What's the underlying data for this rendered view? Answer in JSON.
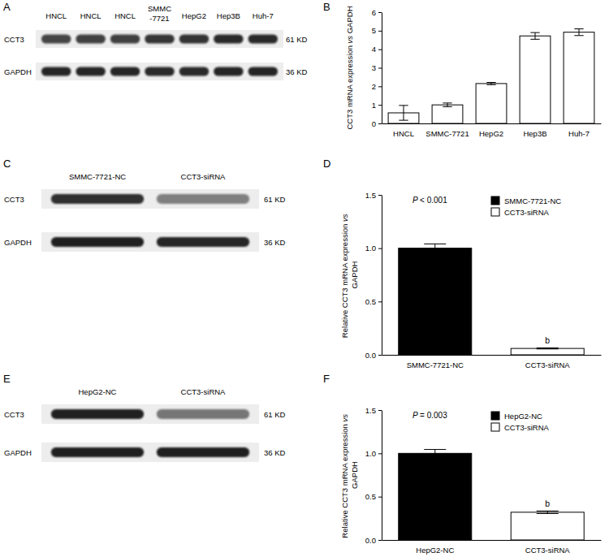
{
  "chart_data": [
    {
      "panel": "A",
      "type": "blot",
      "lanes": [
        "HNCL",
        "HNCL",
        "HNCL",
        "SMMC-7721",
        "HepG2",
        "Hep3B",
        "Huh-7"
      ],
      "rows": [
        {
          "name": "CCT3",
          "size": "61 KD",
          "intensity": [
            0.78,
            0.8,
            0.8,
            0.85,
            0.86,
            0.9,
            0.9
          ]
        },
        {
          "name": "GAPDH",
          "size": "36 KD",
          "intensity": [
            0.92,
            0.92,
            0.92,
            0.9,
            0.9,
            0.92,
            0.93
          ]
        }
      ]
    },
    {
      "panel": "B",
      "type": "bar",
      "categories": [
        "HNCL",
        "SMMC-7721",
        "HepG2",
        "Hep3B",
        "Huh-7"
      ],
      "values": [
        0.57,
        1.0,
        2.15,
        4.72,
        4.92
      ],
      "errors": [
        0.4,
        0.1,
        0.06,
        0.18,
        0.18
      ],
      "color": "#ffffff",
      "ylim": [
        0,
        6
      ],
      "yticks": [
        0,
        1,
        2,
        3,
        4,
        5,
        6
      ],
      "y_label": "CCT3 mRNA expression vs GAPDH"
    },
    {
      "panel": "C",
      "type": "blot",
      "lanes": [
        "SMMC-7721-NC",
        "CCT3-siRNA"
      ],
      "rows": [
        {
          "name": "CCT3",
          "size": "61 KD",
          "intensity": [
            0.88,
            0.5
          ]
        },
        {
          "name": "GAPDH",
          "size": "36 KD",
          "intensity": [
            0.95,
            0.92
          ]
        }
      ]
    },
    {
      "panel": "D",
      "type": "bar",
      "categories": [
        "SMMC-7721-NC",
        "CCT3-siRNA"
      ],
      "values": [
        1.0,
        0.06
      ],
      "errors": [
        0.04,
        0.005
      ],
      "colors": [
        "#000000",
        "#ffffff"
      ],
      "ylim": [
        0,
        1.5
      ],
      "yticks": [
        {
          "value": 0,
          "label": "0.0"
        },
        0.5,
        {
          "value": 1,
          "label": "1.0"
        },
        1.5
      ],
      "y_label": "Relative CCT3 mRNA expression vs GAPDH",
      "p_value": "P < 0.001",
      "significance": [
        null,
        "b"
      ],
      "legend": "top-right"
    },
    {
      "panel": "E",
      "type": "blot",
      "lanes": [
        "HepG2-NC",
        "CCT3-siRNA"
      ],
      "rows": [
        {
          "name": "CCT3",
          "size": "61 KD",
          "intensity": [
            0.95,
            0.55
          ]
        },
        {
          "name": "GAPDH",
          "size": "36 KD",
          "intensity": [
            0.95,
            0.95
          ]
        }
      ]
    },
    {
      "panel": "F",
      "type": "bar",
      "categories": [
        "HepG2-NC",
        "CCT3-siRNA"
      ],
      "values": [
        1.0,
        0.32
      ],
      "errors": [
        0.045,
        0.015
      ],
      "colors": [
        "#000000",
        "#ffffff"
      ],
      "ylim": [
        0,
        1.5
      ],
      "yticks": [
        {
          "value": 0,
          "label": "0.0"
        },
        0.5,
        {
          "value": 1,
          "label": "1.0"
        },
        1.5
      ],
      "y_label": "Relative CCT3 mRNA expression vs GAPDH",
      "p_value": "P = 0.003",
      "significance": [
        null,
        "b"
      ],
      "legend": "top-right"
    }
  ]
}
